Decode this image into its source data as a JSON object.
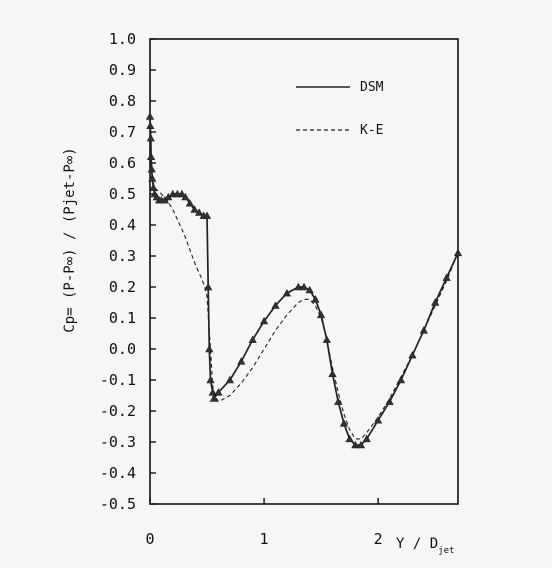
{
  "chart_data": {
    "type": "line",
    "xlabel": "Y / D",
    "xlabel_sub": "jet",
    "ylabel": "Cp= (P-P∞) / (Pjet-P∞)",
    "xlim": [
      0,
      2.7
    ],
    "ylim": [
      -0.5,
      1.0
    ],
    "x_ticks": [
      {
        "value": 0,
        "label": "0"
      },
      {
        "value": 1,
        "label": "1"
      },
      {
        "value": 2,
        "label": "2"
      }
    ],
    "y_ticks": [
      {
        "value": 1.0,
        "label": "1.0"
      },
      {
        "value": 0.9,
        "label": "0.9"
      },
      {
        "value": 0.8,
        "label": "0.8"
      },
      {
        "value": 0.7,
        "label": "0.7"
      },
      {
        "value": 0.6,
        "label": "0.6"
      },
      {
        "value": 0.5,
        "label": "0.5"
      },
      {
        "value": 0.4,
        "label": "0.4"
      },
      {
        "value": 0.3,
        "label": "0.3"
      },
      {
        "value": 0.2,
        "label": "0.2"
      },
      {
        "value": 0.1,
        "label": "0.1"
      },
      {
        "value": 0.0,
        "label": "0.0"
      },
      {
        "value": -0.1,
        "label": "-0.1"
      },
      {
        "value": -0.2,
        "label": "-0.2"
      },
      {
        "value": -0.3,
        "label": "-0.3"
      },
      {
        "value": -0.4,
        "label": "-0.4"
      },
      {
        "value": -0.5,
        "label": "-0.5"
      }
    ],
    "legend": {
      "placement": "top-right"
    },
    "series": [
      {
        "name": "DSM",
        "style": "solid-with-triangles",
        "x": [
          0,
          0.003,
          0.007,
          0.01,
          0.015,
          0.02,
          0.03,
          0.04,
          0.06,
          0.08,
          0.1,
          0.13,
          0.16,
          0.2,
          0.24,
          0.28,
          0.31,
          0.35,
          0.39,
          0.43,
          0.47,
          0.5,
          0.51,
          0.52,
          0.53,
          0.55,
          0.56,
          0.6,
          0.7,
          0.8,
          0.9,
          1.0,
          1.1,
          1.2,
          1.3,
          1.35,
          1.4,
          1.45,
          1.5,
          1.55,
          1.6,
          1.65,
          1.7,
          1.75,
          1.8,
          1.85,
          1.9,
          2.0,
          2.1,
          2.2,
          2.3,
          2.4,
          2.5,
          2.6,
          2.7
        ],
        "y": [
          0.75,
          0.72,
          0.68,
          0.62,
          0.58,
          0.55,
          0.52,
          0.5,
          0.49,
          0.48,
          0.48,
          0.48,
          0.49,
          0.5,
          0.5,
          0.5,
          0.49,
          0.47,
          0.45,
          0.44,
          0.43,
          0.43,
          0.2,
          0.0,
          -0.1,
          -0.14,
          -0.16,
          -0.14,
          -0.1,
          -0.04,
          0.03,
          0.09,
          0.14,
          0.18,
          0.2,
          0.2,
          0.19,
          0.16,
          0.11,
          0.03,
          -0.08,
          -0.17,
          -0.24,
          -0.29,
          -0.31,
          -0.31,
          -0.29,
          -0.23,
          -0.17,
          -0.1,
          -0.02,
          0.06,
          0.15,
          0.23,
          0.31
        ]
      },
      {
        "name": "K-E",
        "style": "dashed",
        "x": [
          0,
          0.005,
          0.01,
          0.02,
          0.04,
          0.07,
          0.1,
          0.15,
          0.2,
          0.25,
          0.3,
          0.35,
          0.4,
          0.45,
          0.48,
          0.5,
          0.53,
          0.55,
          0.57,
          0.6,
          0.7,
          0.8,
          0.9,
          1.0,
          1.1,
          1.2,
          1.3,
          1.35,
          1.4,
          1.45,
          1.5,
          1.55,
          1.6,
          1.65,
          1.7,
          1.75,
          1.8,
          1.85,
          1.9,
          2.0,
          2.1,
          2.2,
          2.3,
          2.4,
          2.5,
          2.6,
          2.7
        ],
        "y": [
          0.72,
          0.68,
          0.62,
          0.55,
          0.52,
          0.51,
          0.5,
          0.48,
          0.45,
          0.41,
          0.37,
          0.32,
          0.27,
          0.23,
          0.2,
          0.17,
          0.0,
          -0.12,
          -0.15,
          -0.17,
          -0.15,
          -0.11,
          -0.06,
          0.0,
          0.06,
          0.11,
          0.15,
          0.16,
          0.16,
          0.14,
          0.1,
          0.03,
          -0.06,
          -0.14,
          -0.21,
          -0.26,
          -0.29,
          -0.29,
          -0.27,
          -0.22,
          -0.16,
          -0.09,
          -0.02,
          0.06,
          0.14,
          0.22,
          0.31
        ]
      }
    ]
  }
}
